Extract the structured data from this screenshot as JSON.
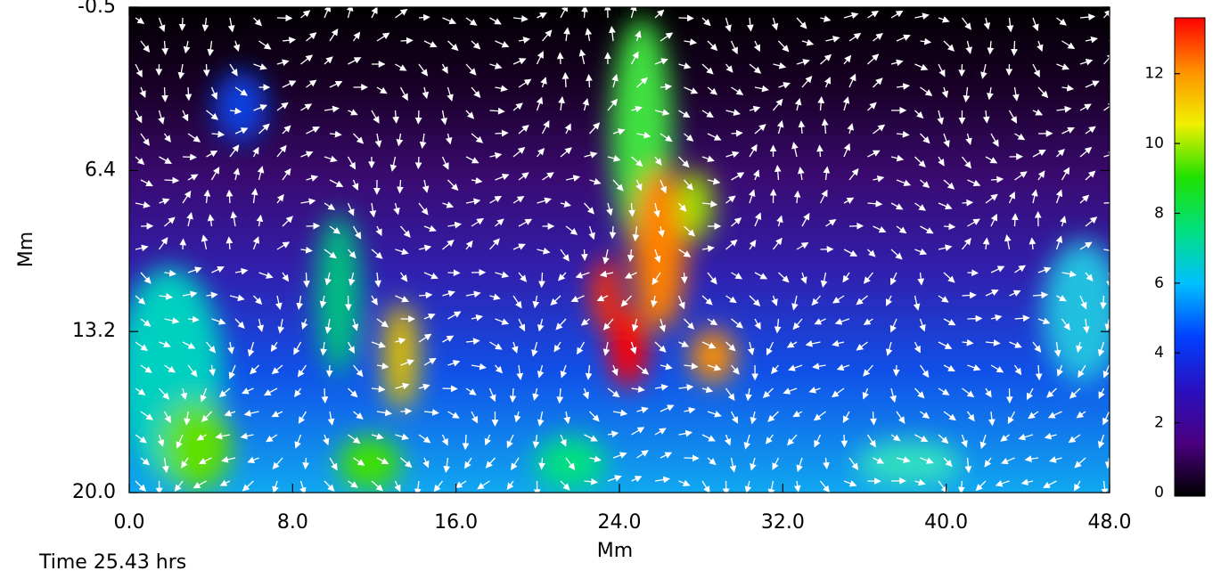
{
  "chart_data": {
    "type": "heatmap",
    "xlabel": "Mm",
    "ylabel": "Mm",
    "annotation": "Time 25.43 hrs",
    "xlim": [
      0,
      48
    ],
    "xticks": [
      {
        "value": 0,
        "label": "0.0"
      },
      {
        "value": 8,
        "label": "8.0"
      },
      {
        "value": 16,
        "label": "16.0"
      },
      {
        "value": 24,
        "label": "24.0"
      },
      {
        "value": 32,
        "label": "32.0"
      },
      {
        "value": 40,
        "label": "40.0"
      },
      {
        "value": 48,
        "label": "48.0"
      }
    ],
    "ylim": [
      20,
      -0.5
    ],
    "yticks": [
      {
        "value": -0.5,
        "label": "-0.5"
      },
      6.4,
      13.2,
      {
        "value": 20,
        "label": "20.0"
      }
    ],
    "clim": [
      0,
      13.6
    ],
    "cticks": [
      0,
      2,
      4,
      6,
      8,
      10,
      12
    ],
    "colormap": [
      "#000000",
      "#4a0080",
      "#2a10c0",
      "#0040ff",
      "#00c0ff",
      "#00e080",
      "#20e000",
      "#f0f000",
      "#ff9000",
      "#ff0000"
    ]
  }
}
